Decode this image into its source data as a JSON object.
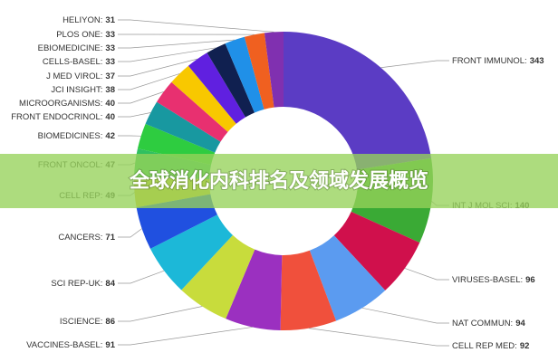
{
  "chart_data": {
    "type": "donut",
    "title": "全球消化内科排名及领域发展概览",
    "categories": [
      "FRONT IMMUNOL:",
      "INT J MOL SCI:",
      "VIRUSES-BASEL:",
      "NAT COMMUN:",
      "CELL REP MED:",
      "VACCINES-BASEL:",
      "ISCIENCE:",
      "SCI REP-UK:",
      "CANCERS:",
      "CELL REP:",
      "FRONT ONCOL:",
      "BIOMEDICINES:",
      "FRONT ENDOCRINOL:",
      "MICROORGANISMS:",
      "JCI INSIGHT:",
      "J MED VIROL:",
      "CELLS-BASEL:",
      "EBIOMEDICINE:",
      "PLOS ONE:",
      "HELIYON:"
    ],
    "values": [
      343,
      140,
      96,
      94,
      92,
      91,
      86,
      84,
      71,
      49,
      47,
      42,
      40,
      40,
      38,
      37,
      33,
      33,
      33,
      31
    ],
    "colors": [
      "#5b3cc4",
      "#3aaa35",
      "#d0104c",
      "#5b9bf0",
      "#f0503c",
      "#9b30c0",
      "#c8dc3c",
      "#1cb8d8",
      "#2050e0",
      "#e0c030",
      "#30c060",
      "#2ecc40",
      "#1898a0",
      "#e83070",
      "#f8c800",
      "#6020e0",
      "#102050",
      "#2090e8",
      "#f06020",
      "#8030b0"
    ]
  }
}
